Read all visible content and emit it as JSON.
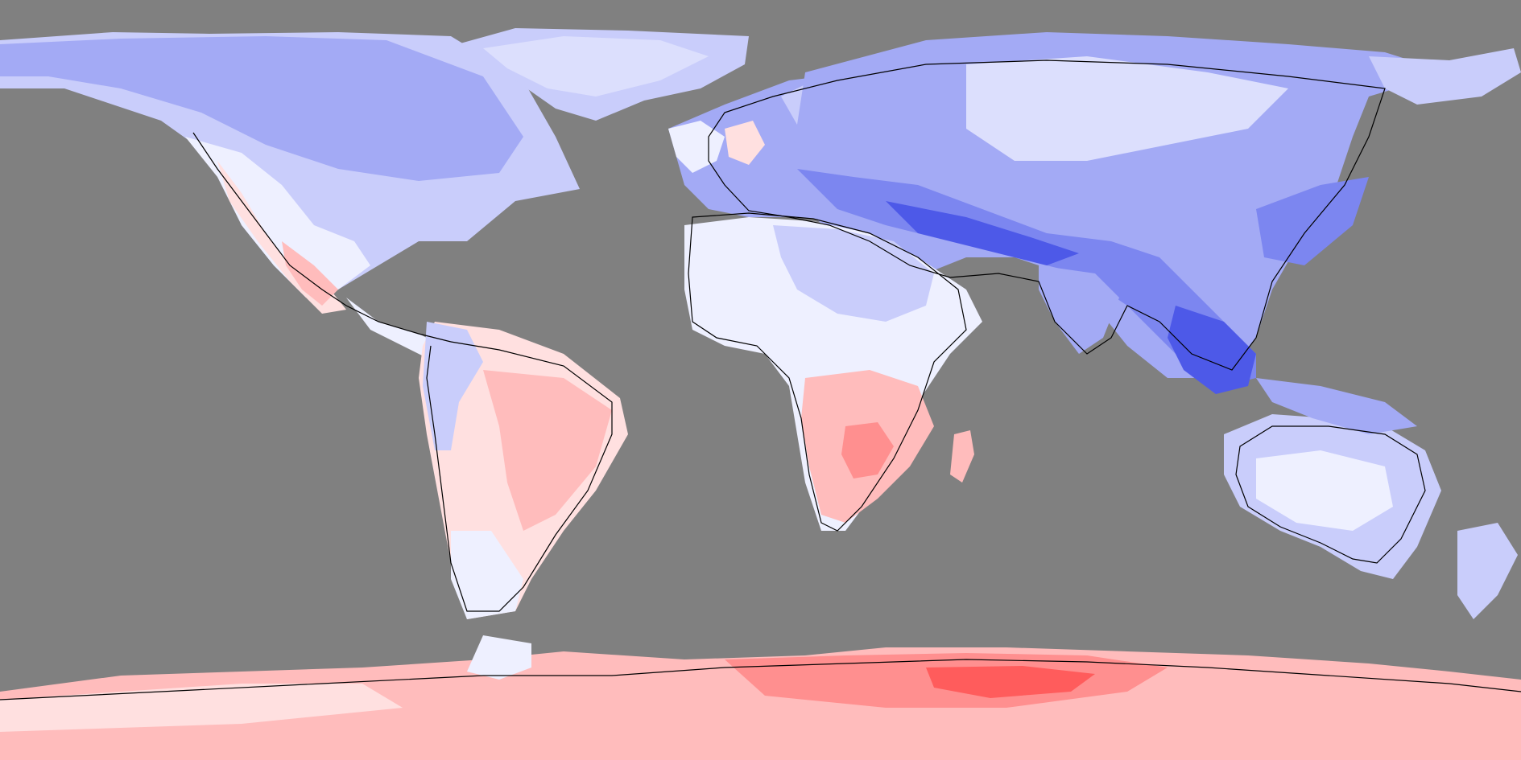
{
  "map": {
    "projection": "equirectangular",
    "ocean_color": "#808080",
    "coastline_color": "#000000",
    "colors": {
      "very_cold": "#4d59e8",
      "cold": "#7c86f0",
      "cool": "#a3aaf5",
      "slightly_cool": "#c9cdfb",
      "near_zero": "#eef0ff",
      "neutral": "#ffffff",
      "slightly_warm": "#ffe0e0",
      "warm": "#ffbcbc",
      "hot": "#ff8f8f",
      "very_hot": "#ff5c5c"
    }
  }
}
